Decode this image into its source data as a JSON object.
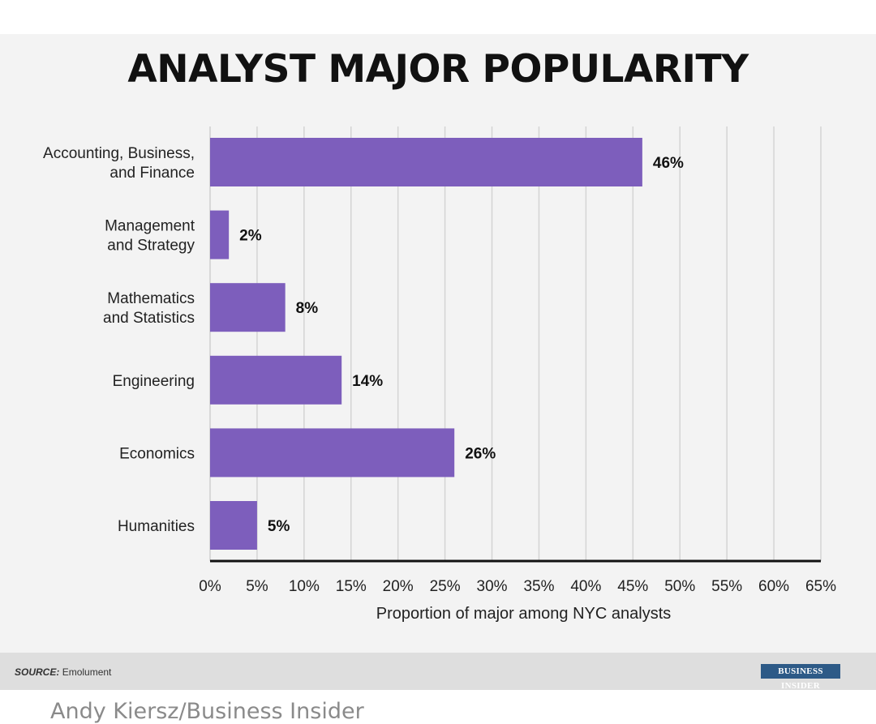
{
  "chart_data": {
    "type": "bar",
    "orientation": "horizontal",
    "title": "ANALYST MAJOR POPULARITY",
    "xlabel": "Proportion of major among NYC analysts",
    "ylabel": "",
    "categories": [
      [
        "Accounting, Business,",
        "and Finance"
      ],
      [
        "Management",
        "and Strategy"
      ],
      [
        "Mathematics",
        "and Statistics"
      ],
      [
        "Engineering"
      ],
      [
        "Economics"
      ],
      [
        "Humanities"
      ]
    ],
    "values": [
      46,
      2,
      8,
      14,
      26,
      5
    ],
    "value_labels": [
      "46%",
      "2%",
      "8%",
      "14%",
      "26%",
      "5%"
    ],
    "unit": "%",
    "xlim": [
      0,
      65
    ],
    "xticks": [
      0,
      5,
      10,
      15,
      20,
      25,
      30,
      35,
      40,
      45,
      50,
      55,
      60,
      65
    ],
    "xtick_labels": [
      "0%",
      "5%",
      "10%",
      "15%",
      "20%",
      "25%",
      "30%",
      "35%",
      "40%",
      "45%",
      "50%",
      "55%",
      "60%",
      "65%"
    ],
    "grid": "vertical",
    "bar_color": "#7d5ebc"
  },
  "source": {
    "label": "SOURCE:",
    "text": "Emolument"
  },
  "logo_text": "BUSINESS INSIDER",
  "credit": "Andy Kiersz/Business Insider"
}
